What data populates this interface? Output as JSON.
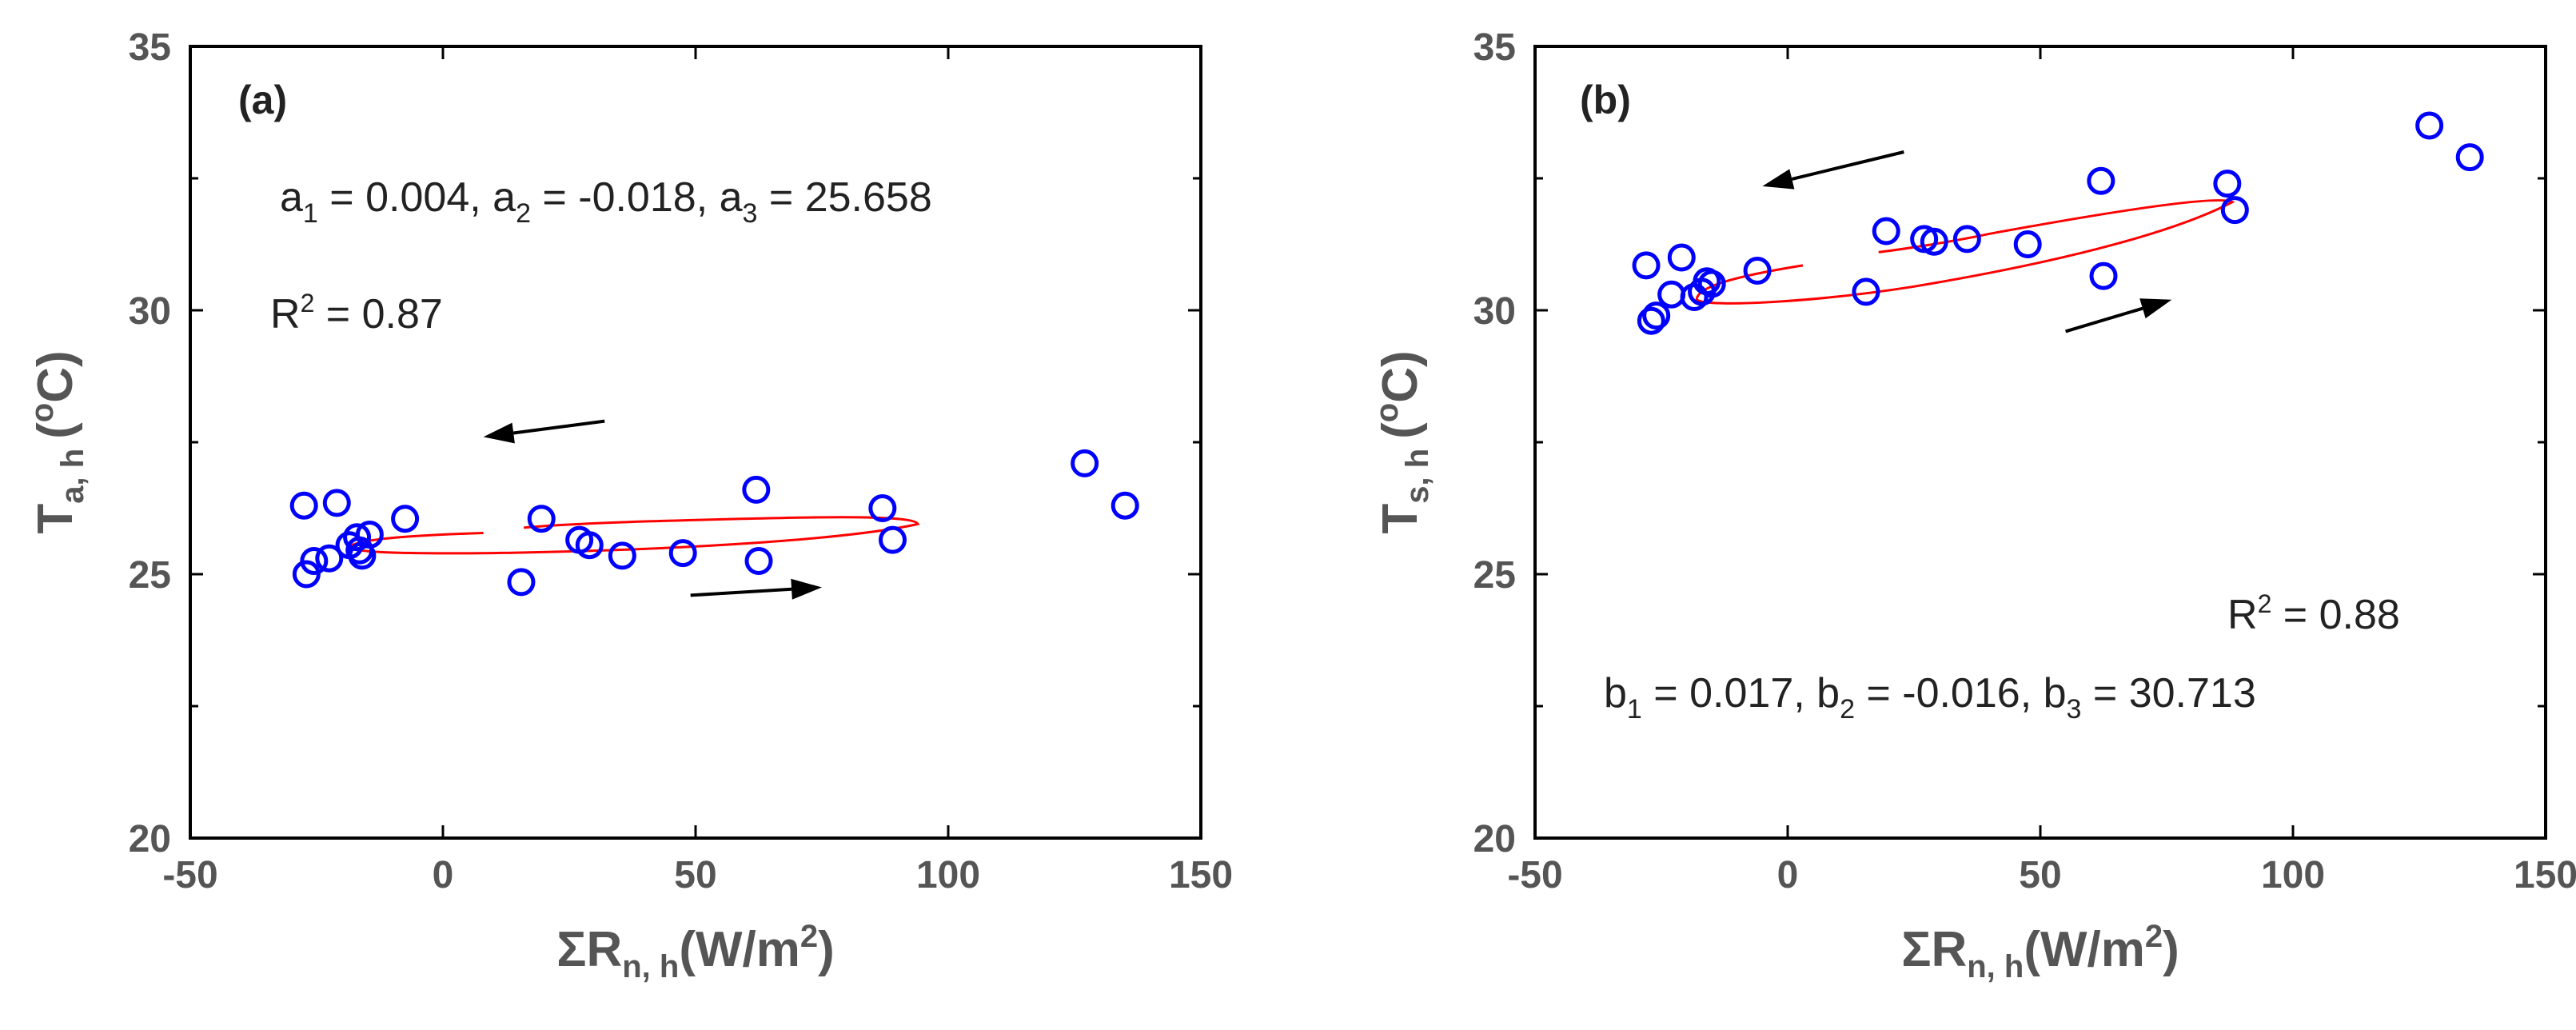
{
  "chart_data": [
    {
      "type": "scatter",
      "panel_label": "(a)",
      "xlim": [
        -50,
        150
      ],
      "ylim": [
        20,
        35
      ],
      "xticks": [
        -50,
        0,
        50,
        100,
        150
      ],
      "yticks": [
        20,
        25,
        30,
        35
      ],
      "xtick_labels": [
        "-50",
        "0",
        "50",
        "100",
        "150"
      ],
      "ytick_labels": [
        "20",
        "25",
        "30",
        "35"
      ],
      "ylabel": {
        "main": "T",
        "sub": "a, h",
        "unit_open": "(",
        "unit_sup": "o",
        "unit_close": "C)"
      },
      "xlabel": {
        "main": "ΣR",
        "sub": "n, h",
        "unit": "(W/m",
        "unit_sup": "2",
        "unit_close": ")"
      },
      "coef_text": {
        "a1": "a",
        "a1_sub": "1",
        "a1_val": " = 0.004, ",
        "a2": "a",
        "a2_sub": "2",
        "a2_val": " = -0.018, ",
        "a3": "a",
        "a3_sub": "3",
        "a3_val": " = 25.658"
      },
      "r2_text": {
        "r": "R",
        "sup": "2",
        "val": " = 0.87"
      },
      "points_color": "#0000ff",
      "curve_color": "#ff0000",
      "arrow_color": "#000000",
      "points": [
        [
          -27.5,
          26.3
        ],
        [
          -21,
          26.35
        ],
        [
          -7.5,
          26.05
        ],
        [
          -27,
          25.0
        ],
        [
          -25.5,
          25.25
        ],
        [
          -22.5,
          25.3
        ],
        [
          -18.5,
          25.55
        ],
        [
          -17,
          25.7
        ],
        [
          -16.5,
          25.45
        ],
        [
          -16,
          25.35
        ],
        [
          -14.5,
          25.75
        ],
        [
          15.5,
          24.85
        ],
        [
          19.5,
          26.05
        ],
        [
          27,
          25.65
        ],
        [
          29,
          25.55
        ],
        [
          35.5,
          25.35
        ],
        [
          47.5,
          25.4
        ],
        [
          62,
          26.6
        ],
        [
          62.5,
          25.25
        ],
        [
          87,
          26.25
        ],
        [
          89,
          25.65
        ],
        [
          127,
          27.1
        ],
        [
          135,
          26.3
        ]
      ],
      "arrows": [
        {
          "direction": "left",
          "from": [
            32,
            27.9
          ],
          "to": [
            8,
            27.6
          ]
        },
        {
          "direction": "right",
          "from": [
            49,
            24.6
          ],
          "to": [
            75,
            24.75
          ]
        }
      ]
    },
    {
      "type": "scatter",
      "panel_label": "(b)",
      "xlim": [
        -50,
        150
      ],
      "ylim": [
        20,
        35
      ],
      "xticks": [
        -50,
        0,
        50,
        100,
        150
      ],
      "yticks": [
        20,
        25,
        30,
        35
      ],
      "xtick_labels": [
        "-50",
        "0",
        "50",
        "100",
        "150"
      ],
      "ytick_labels": [
        "20",
        "25",
        "30",
        "35"
      ],
      "ylabel": {
        "main": "T",
        "sub": "s, h",
        "unit_open": "(",
        "unit_sup": "o",
        "unit_close": "C)"
      },
      "xlabel": {
        "main": "ΣR",
        "sub": "n, h",
        "unit": "(W/m",
        "unit_sup": "2",
        "unit_close": ")"
      },
      "coef_text": {
        "a1": "b",
        "a1_sub": "1",
        "a1_val": " = 0.017, ",
        "a2": "b",
        "a2_sub": "2",
        "a2_val": " = -0.016, ",
        "a3": "b",
        "a3_sub": "3",
        "a3_val": " = 30.713"
      },
      "r2_text": {
        "r": "R",
        "sup": "2",
        "val": " = 0.88"
      },
      "points_color": "#0000ff",
      "curve_color": "#ff0000",
      "arrow_color": "#000000",
      "points": [
        [
          -28,
          30.85
        ],
        [
          -21,
          31.0
        ],
        [
          -16,
          30.55
        ],
        [
          -6,
          30.75
        ],
        [
          -23,
          30.3
        ],
        [
          -18.5,
          30.25
        ],
        [
          -17,
          30.35
        ],
        [
          -15,
          30.5
        ],
        [
          -27,
          29.8
        ],
        [
          -26,
          29.9
        ],
        [
          15.5,
          30.35
        ],
        [
          19.5,
          31.5
        ],
        [
          27,
          31.35
        ],
        [
          29,
          31.3
        ],
        [
          35.5,
          31.35
        ],
        [
          47.5,
          31.25
        ],
        [
          62,
          32.45
        ],
        [
          62.5,
          30.65
        ],
        [
          87,
          32.4
        ],
        [
          88.5,
          31.9
        ],
        [
          127,
          33.5
        ],
        [
          135,
          32.9
        ]
      ],
      "arrows": [
        {
          "direction": "left",
          "from": [
            23,
            33.0
          ],
          "to": [
            -5,
            32.35
          ]
        },
        {
          "direction": "right",
          "from": [
            55,
            29.6
          ],
          "to": [
            76,
            30.2
          ]
        }
      ]
    }
  ]
}
